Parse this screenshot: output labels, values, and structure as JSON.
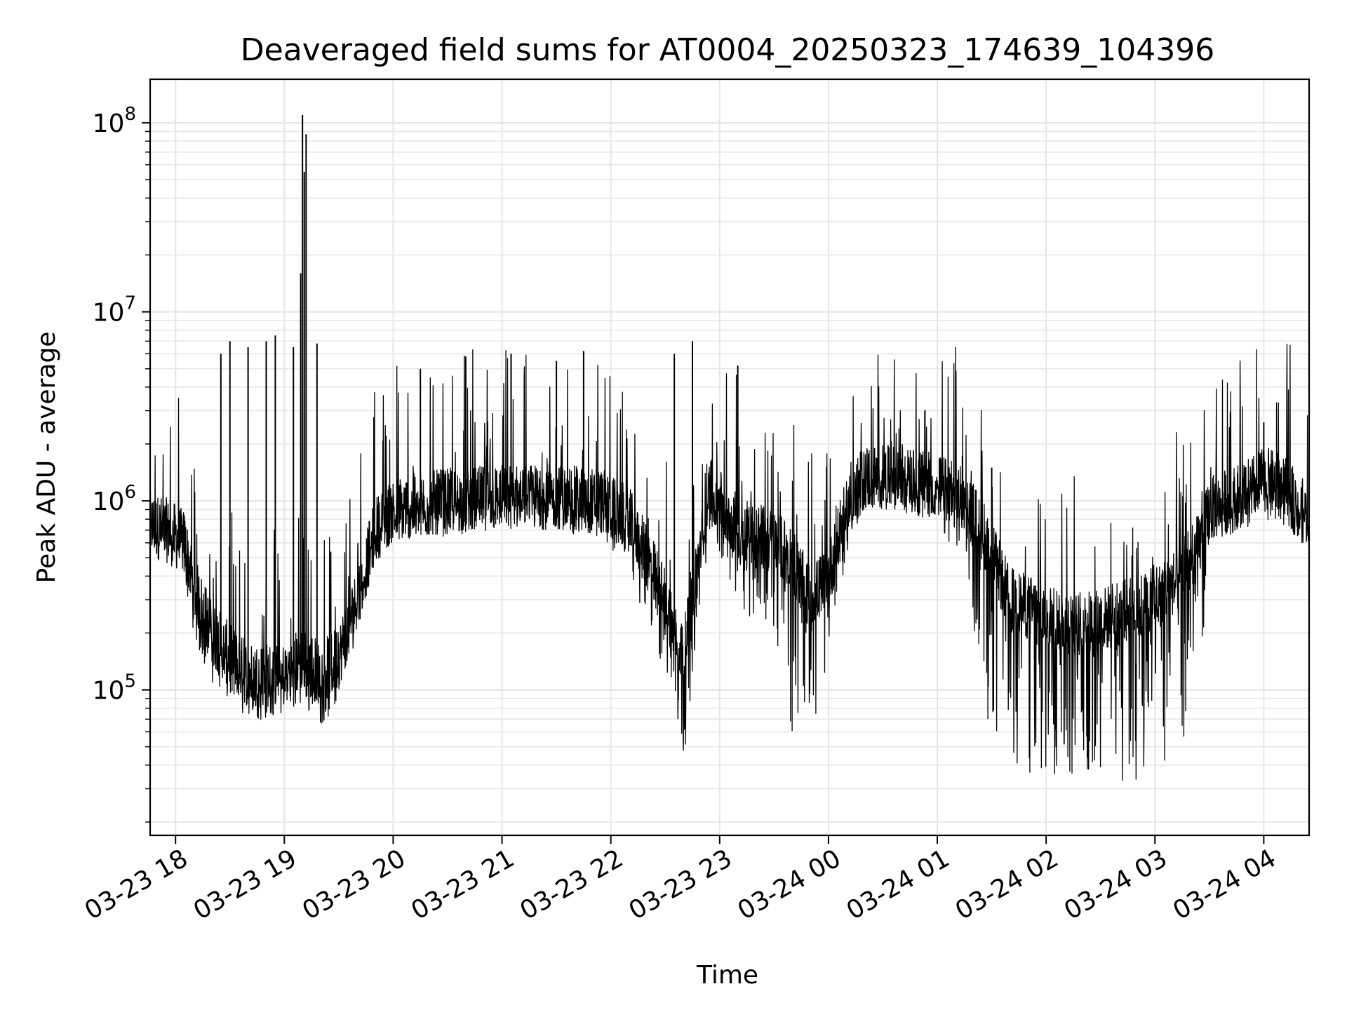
{
  "chart_data": {
    "type": "line",
    "title": "Deaveraged field sums for AT0004_20250323_174639_104396",
    "xlabel": "Time",
    "ylabel": "Peak ADU - average",
    "yscale": "log",
    "ylim": [
      17000,
      170000000
    ],
    "xlim": [
      "2025-03-23 17:46",
      "2025-03-24 04:25"
    ],
    "grid": true,
    "line_color": "#000000",
    "grid_color": "#e6e6e6",
    "x_ticks": [
      {
        "label": "03-23 18",
        "t": "2025-03-23 18:00"
      },
      {
        "label": "03-23 19",
        "t": "2025-03-23 19:00"
      },
      {
        "label": "03-23 20",
        "t": "2025-03-23 20:00"
      },
      {
        "label": "03-23 21",
        "t": "2025-03-23 21:00"
      },
      {
        "label": "03-23 22",
        "t": "2025-03-23 22:00"
      },
      {
        "label": "03-23 23",
        "t": "2025-03-23 23:00"
      },
      {
        "label": "03-24 00",
        "t": "2025-03-24 00:00"
      },
      {
        "label": "03-24 01",
        "t": "2025-03-24 01:00"
      },
      {
        "label": "03-24 02",
        "t": "2025-03-24 02:00"
      },
      {
        "label": "03-24 03",
        "t": "2025-03-24 03:00"
      },
      {
        "label": "03-24 04",
        "t": "2025-03-24 04:00"
      }
    ],
    "y_ticks": [
      {
        "base": "10",
        "exp": "5",
        "value": 100000
      },
      {
        "base": "10",
        "exp": "6",
        "value": 1000000
      },
      {
        "base": "10",
        "exp": "7",
        "value": 10000000
      },
      {
        "base": "10",
        "exp": "8",
        "value": 100000000
      }
    ],
    "series": [
      {
        "envelope": {
          "t": [
            "2025-03-23 17:46",
            "2025-03-23 17:55",
            "2025-03-23 18:05",
            "2025-03-23 18:10",
            "2025-03-23 18:20",
            "2025-03-23 18:30",
            "2025-03-23 18:40",
            "2025-03-23 18:50",
            "2025-03-23 19:00",
            "2025-03-23 19:10",
            "2025-03-23 19:20",
            "2025-03-23 19:30",
            "2025-03-23 19:40",
            "2025-03-23 19:50",
            "2025-03-23 20:00",
            "2025-03-23 20:30",
            "2025-03-23 21:00",
            "2025-03-23 21:30",
            "2025-03-23 21:55",
            "2025-03-23 22:10",
            "2025-03-23 22:20",
            "2025-03-23 22:30",
            "2025-03-23 22:40",
            "2025-03-23 22:50",
            "2025-03-23 22:55",
            "2025-03-23 23:05",
            "2025-03-23 23:15",
            "2025-03-23 23:30",
            "2025-03-23 23:40",
            "2025-03-23 23:50",
            "2025-03-24 00:00",
            "2025-03-24 00:10",
            "2025-03-24 00:20",
            "2025-03-24 00:40",
            "2025-03-24 01:00",
            "2025-03-24 01:15",
            "2025-03-24 01:25",
            "2025-03-24 01:40",
            "2025-03-24 02:00",
            "2025-03-24 02:20",
            "2025-03-24 02:40",
            "2025-03-24 03:00",
            "2025-03-24 03:15",
            "2025-03-24 03:25",
            "2025-03-24 03:30",
            "2025-03-24 03:40",
            "2025-03-24 03:50",
            "2025-03-24 04:00",
            "2025-03-24 04:10",
            "2025-03-24 04:25"
          ],
          "base": [
            750000,
            700000,
            600000,
            350000,
            200000,
            150000,
            120000,
            120000,
            120000,
            150000,
            120000,
            150000,
            300000,
            700000,
            900000,
            1000000,
            1050000,
            1050000,
            1000000,
            800000,
            500000,
            300000,
            150000,
            600000,
            1200000,
            800000,
            700000,
            600000,
            500000,
            300000,
            400000,
            900000,
            1350000,
            1300000,
            1200000,
            1000000,
            700000,
            300000,
            250000,
            220000,
            250000,
            300000,
            400000,
            600000,
            900000,
            1000000,
            1100000,
            1300000,
            1200000,
            800000
          ],
          "low": [
            550000,
            500000,
            400000,
            180000,
            110000,
            80000,
            65000,
            70000,
            75000,
            80000,
            65000,
            80000,
            200000,
            500000,
            600000,
            650000,
            700000,
            700000,
            600000,
            450000,
            200000,
            120000,
            40000,
            300000,
            700000,
            350000,
            250000,
            200000,
            60000,
            50000,
            150000,
            500000,
            900000,
            900000,
            700000,
            500000,
            80000,
            35000,
            30000,
            27000,
            30000,
            35000,
            50000,
            100000,
            600000,
            650000,
            700000,
            800000,
            750000,
            550000
          ]
        },
        "spikes": [
          {
            "t": "2025-03-23 19:10",
            "value": 110000000
          },
          {
            "t": "2025-03-23 19:12",
            "value": 87000000
          },
          {
            "t": "2025-03-23 19:11",
            "value": 55000000
          },
          {
            "t": "2025-03-23 19:09",
            "value": 16000000
          },
          {
            "t": "2025-03-23 18:25",
            "value": 6000000
          },
          {
            "t": "2025-03-23 18:30",
            "value": 7000000
          },
          {
            "t": "2025-03-23 18:40",
            "value": 6500000
          },
          {
            "t": "2025-03-23 18:50",
            "value": 7000000
          },
          {
            "t": "2025-03-23 18:55",
            "value": 7500000
          },
          {
            "t": "2025-03-23 19:05",
            "value": 6500000
          },
          {
            "t": "2025-03-23 19:18",
            "value": 6800000
          },
          {
            "t": "2025-03-23 20:15",
            "value": 5000000
          },
          {
            "t": "2025-03-23 20:40",
            "value": 5800000
          },
          {
            "t": "2025-03-23 21:05",
            "value": 6000000
          },
          {
            "t": "2025-03-23 21:30",
            "value": 5500000
          },
          {
            "t": "2025-03-23 21:45",
            "value": 6200000
          },
          {
            "t": "2025-03-23 22:35",
            "value": 6000000
          },
          {
            "t": "2025-03-23 22:45",
            "value": 7000000
          },
          {
            "t": "2025-03-23 23:10",
            "value": 5200000
          },
          {
            "t": "2025-03-24 01:30",
            "value": 1500000
          },
          {
            "t": "2025-03-24 04:00",
            "value": 2600000
          }
        ]
      }
    ]
  }
}
